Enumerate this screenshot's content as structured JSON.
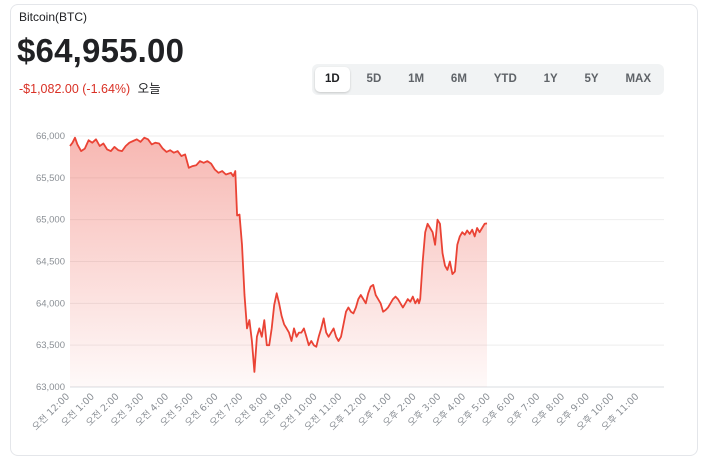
{
  "header": {
    "asset_name": "Bitcoin(BTC)",
    "price": "$64,955.00",
    "change": "-$1,082.00 (-1.64%)",
    "period": "오늘"
  },
  "tabs": [
    {
      "label": "1D",
      "active": true
    },
    {
      "label": "5D",
      "active": false
    },
    {
      "label": "1M",
      "active": false
    },
    {
      "label": "6M",
      "active": false
    },
    {
      "label": "YTD",
      "active": false
    },
    {
      "label": "1Y",
      "active": false
    },
    {
      "label": "5Y",
      "active": false
    },
    {
      "label": "MAX",
      "active": false
    }
  ],
  "colors": {
    "line": "#ea4335",
    "negative": "#d93025",
    "grid": "#eeeeee"
  },
  "chart_data": {
    "type": "area",
    "ylim": [
      63000,
      66000
    ],
    "y_ticks": [
      "63,000",
      "63,500",
      "64,000",
      "64,500",
      "65,000",
      "65,500",
      "66,000"
    ],
    "x_ticks": [
      "오전 12:00",
      "오전 1:00",
      "오전 2:00",
      "오전 3:00",
      "오전 4:00",
      "오전 5:00",
      "오전 6:00",
      "오전 7:00",
      "오전 8:00",
      "오전 9:00",
      "오전 10:00",
      "오전 11:00",
      "오후 12:00",
      "오후 1:00",
      "오후 2:00",
      "오후 3:00",
      "오후 4:00",
      "오후 5:00",
      "오후 6:00",
      "오후 7:00",
      "오후 8:00",
      "오후 9:00",
      "오후 10:00",
      "오후 11:00"
    ],
    "x_hours": [
      0,
      24
    ],
    "points": [
      [
        0.0,
        65880
      ],
      [
        0.1,
        65920
      ],
      [
        0.2,
        65980
      ],
      [
        0.3,
        65900
      ],
      [
        0.45,
        65820
      ],
      [
        0.6,
        65850
      ],
      [
        0.75,
        65950
      ],
      [
        0.9,
        65920
      ],
      [
        1.05,
        65960
      ],
      [
        1.2,
        65880
      ],
      [
        1.35,
        65910
      ],
      [
        1.5,
        65840
      ],
      [
        1.65,
        65820
      ],
      [
        1.8,
        65870
      ],
      [
        1.95,
        65830
      ],
      [
        2.1,
        65820
      ],
      [
        2.25,
        65880
      ],
      [
        2.4,
        65920
      ],
      [
        2.55,
        65940
      ],
      [
        2.7,
        65960
      ],
      [
        2.85,
        65930
      ],
      [
        3.0,
        65980
      ],
      [
        3.15,
        65960
      ],
      [
        3.3,
        65900
      ],
      [
        3.45,
        65920
      ],
      [
        3.6,
        65910
      ],
      [
        3.75,
        65850
      ],
      [
        3.9,
        65810
      ],
      [
        4.05,
        65830
      ],
      [
        4.2,
        65800
      ],
      [
        4.35,
        65820
      ],
      [
        4.5,
        65760
      ],
      [
        4.65,
        65780
      ],
      [
        4.8,
        65620
      ],
      [
        4.95,
        65640
      ],
      [
        5.1,
        65650
      ],
      [
        5.25,
        65700
      ],
      [
        5.4,
        65680
      ],
      [
        5.55,
        65700
      ],
      [
        5.7,
        65670
      ],
      [
        5.85,
        65600
      ],
      [
        6.0,
        65560
      ],
      [
        6.15,
        65580
      ],
      [
        6.3,
        65540
      ],
      [
        6.5,
        65560
      ],
      [
        6.6,
        65520
      ],
      [
        6.68,
        65580
      ],
      [
        6.75,
        65050
      ],
      [
        6.85,
        65060
      ],
      [
        6.95,
        64700
      ],
      [
        7.05,
        64100
      ],
      [
        7.15,
        63700
      ],
      [
        7.25,
        63800
      ],
      [
        7.35,
        63550
      ],
      [
        7.45,
        63180
      ],
      [
        7.55,
        63600
      ],
      [
        7.65,
        63700
      ],
      [
        7.75,
        63600
      ],
      [
        7.85,
        63800
      ],
      [
        7.95,
        63500
      ],
      [
        8.05,
        63500
      ],
      [
        8.15,
        63700
      ],
      [
        8.25,
        63980
      ],
      [
        8.35,
        64120
      ],
      [
        8.45,
        64000
      ],
      [
        8.55,
        63850
      ],
      [
        8.65,
        63750
      ],
      [
        8.75,
        63700
      ],
      [
        8.85,
        63650
      ],
      [
        8.95,
        63550
      ],
      [
        9.05,
        63700
      ],
      [
        9.15,
        63600
      ],
      [
        9.25,
        63650
      ],
      [
        9.35,
        63650
      ],
      [
        9.45,
        63700
      ],
      [
        9.55,
        63600
      ],
      [
        9.65,
        63500
      ],
      [
        9.75,
        63550
      ],
      [
        9.85,
        63500
      ],
      [
        9.95,
        63480
      ],
      [
        10.05,
        63600
      ],
      [
        10.15,
        63700
      ],
      [
        10.25,
        63820
      ],
      [
        10.35,
        63650
      ],
      [
        10.45,
        63600
      ],
      [
        10.55,
        63650
      ],
      [
        10.65,
        63700
      ],
      [
        10.75,
        63600
      ],
      [
        10.85,
        63550
      ],
      [
        10.95,
        63600
      ],
      [
        11.05,
        63750
      ],
      [
        11.15,
        63900
      ],
      [
        11.25,
        63950
      ],
      [
        11.35,
        63900
      ],
      [
        11.45,
        63880
      ],
      [
        11.55,
        63950
      ],
      [
        11.65,
        64050
      ],
      [
        11.75,
        64100
      ],
      [
        11.85,
        64050
      ],
      [
        11.95,
        64000
      ],
      [
        12.05,
        64120
      ],
      [
        12.15,
        64200
      ],
      [
        12.25,
        64220
      ],
      [
        12.35,
        64100
      ],
      [
        12.45,
        64050
      ],
      [
        12.55,
        64000
      ],
      [
        12.65,
        63900
      ],
      [
        12.75,
        63920
      ],
      [
        12.85,
        63950
      ],
      [
        12.95,
        64000
      ],
      [
        13.05,
        64050
      ],
      [
        13.15,
        64080
      ],
      [
        13.25,
        64050
      ],
      [
        13.35,
        64000
      ],
      [
        13.45,
        63950
      ],
      [
        13.55,
        64000
      ],
      [
        13.65,
        64050
      ],
      [
        13.75,
        64020
      ],
      [
        13.85,
        64080
      ],
      [
        13.95,
        64000
      ],
      [
        14.05,
        64050
      ],
      [
        14.1,
        64000
      ],
      [
        14.15,
        64050
      ],
      [
        14.25,
        64500
      ],
      [
        14.35,
        64850
      ],
      [
        14.45,
        64950
      ],
      [
        14.55,
        64900
      ],
      [
        14.65,
        64850
      ],
      [
        14.75,
        64700
      ],
      [
        14.85,
        65000
      ],
      [
        14.95,
        64950
      ],
      [
        15.05,
        64600
      ],
      [
        15.15,
        64450
      ],
      [
        15.25,
        64400
      ],
      [
        15.35,
        64500
      ],
      [
        15.45,
        64350
      ],
      [
        15.55,
        64380
      ],
      [
        15.65,
        64700
      ],
      [
        15.75,
        64800
      ],
      [
        15.85,
        64850
      ],
      [
        15.95,
        64820
      ],
      [
        16.05,
        64870
      ],
      [
        16.15,
        64830
      ],
      [
        16.25,
        64880
      ],
      [
        16.35,
        64800
      ],
      [
        16.45,
        64900
      ],
      [
        16.55,
        64850
      ],
      [
        16.65,
        64900
      ],
      [
        16.75,
        64950
      ],
      [
        16.85,
        64955
      ]
    ]
  }
}
